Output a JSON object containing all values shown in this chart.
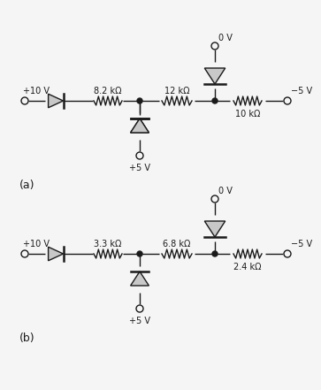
{
  "bg_color": "#f5f5f5",
  "line_color": "#1a1a1a",
  "diode_fill": "#c8c8c8",
  "circuit_a": {
    "label": "(a)",
    "vplus": "+10 V",
    "vminus": "−5 V",
    "vtop": "0 V",
    "vbottom": "+5 V",
    "r1": "8.2 kΩ",
    "r2": "12 kΩ",
    "r3": "10 kΩ"
  },
  "circuit_b": {
    "label": "(b)",
    "vplus": "+10 V",
    "vminus": "−5 V",
    "vtop": "0 V",
    "vbottom": "+5 V",
    "r1": "3.3 kΩ",
    "r2": "6.8 kΩ",
    "r3": "2.4 kΩ"
  }
}
